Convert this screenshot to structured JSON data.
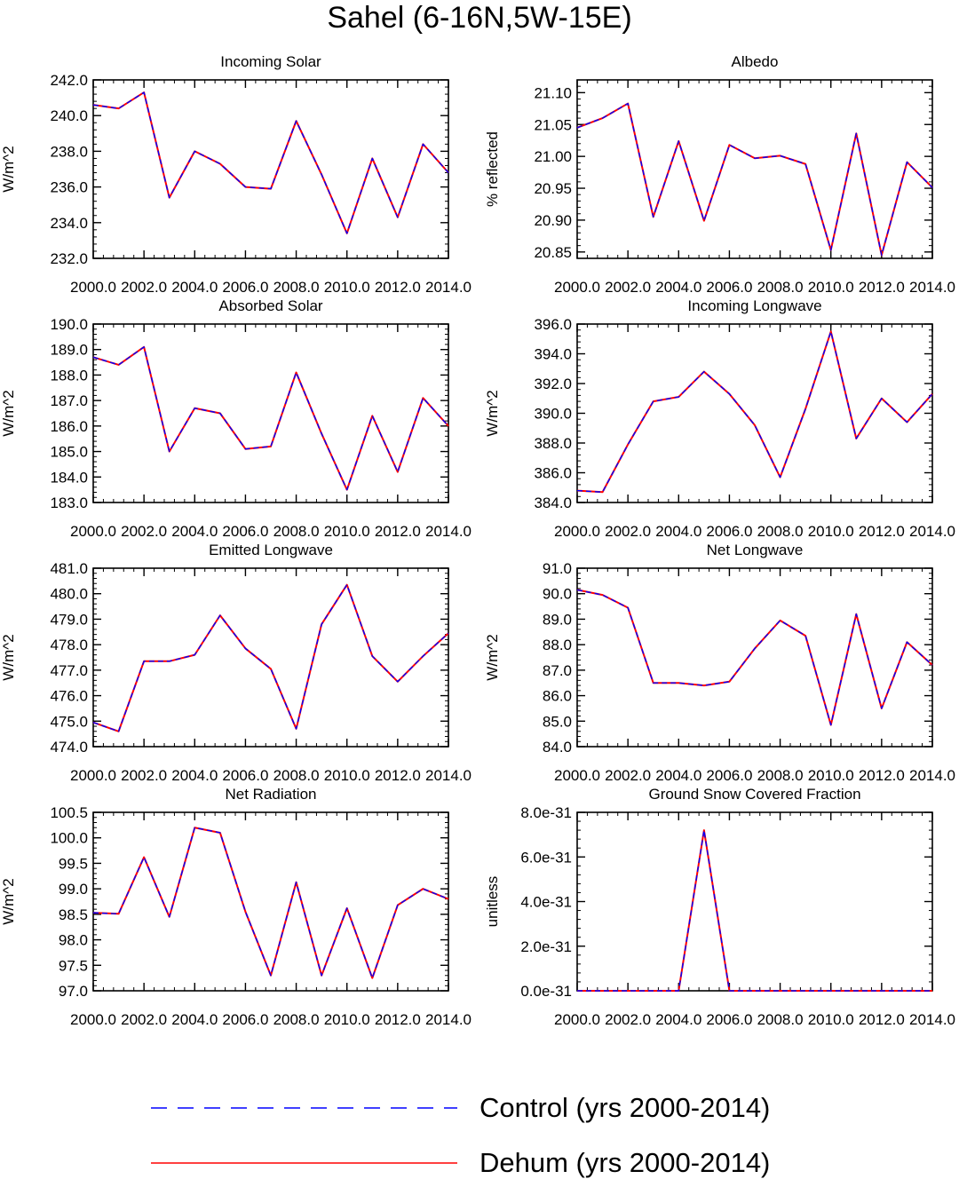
{
  "title": "Sahel (6-16N,5W-15E)",
  "colors": {
    "control": "#0000ff",
    "dehum": "#ff0000",
    "axis": "#000000"
  },
  "legend": [
    {
      "label": "Control (yrs 2000-2014)",
      "style": "dashed",
      "color": "#0000ff"
    },
    {
      "label": "Dehum (yrs 2000-2014)",
      "style": "solid",
      "color": "#ff0000"
    }
  ],
  "chart_data": [
    {
      "type": "line",
      "title": "Incoming Solar",
      "ylabel": "W/m^2",
      "xlim": [
        2000,
        2014
      ],
      "ylim": [
        232,
        242
      ],
      "yticks": [
        232,
        234,
        236,
        238,
        240,
        242
      ],
      "yticklabels": [
        "232.0",
        "234.0",
        "236.0",
        "238.0",
        "240.0",
        "242.0"
      ],
      "xticks": [
        2000,
        2002,
        2004,
        2006,
        2008,
        2010,
        2012,
        2014
      ],
      "xticklabels": [
        "2000.0",
        "2002.0",
        "2004.0",
        "2006.0",
        "2008.0",
        "2010.0",
        "2012.0",
        "2014.0"
      ],
      "x": [
        2000,
        2001,
        2002,
        2003,
        2004,
        2005,
        2006,
        2007,
        2008,
        2009,
        2010,
        2011,
        2012,
        2013,
        2014
      ],
      "series": [
        {
          "name": "Control (yrs 2000-2014)",
          "values": [
            240.6,
            240.4,
            241.3,
            235.4,
            238.0,
            237.3,
            236.0,
            235.9,
            239.7,
            236.7,
            233.4,
            237.6,
            234.3,
            238.4,
            236.8
          ]
        },
        {
          "name": "Dehum (yrs 2000-2014)",
          "values": [
            240.6,
            240.4,
            241.3,
            235.4,
            238.0,
            237.3,
            236.0,
            235.9,
            239.7,
            236.7,
            233.4,
            237.6,
            234.3,
            238.4,
            236.8
          ]
        }
      ]
    },
    {
      "type": "line",
      "title": "Albedo",
      "ylabel": "% reflected",
      "xlim": [
        2000,
        2014
      ],
      "ylim": [
        20.84,
        21.12
      ],
      "yticks": [
        20.85,
        20.9,
        20.95,
        21.0,
        21.05,
        21.1
      ],
      "yticklabels": [
        "20.85",
        "20.90",
        "20.95",
        "21.00",
        "21.05",
        "21.10"
      ],
      "xticks": [
        2000,
        2002,
        2004,
        2006,
        2008,
        2010,
        2012,
        2014
      ],
      "xticklabels": [
        "2000.0",
        "2002.0",
        "2004.0",
        "2006.0",
        "2008.0",
        "2010.0",
        "2012.0",
        "2014.0"
      ],
      "x": [
        2000,
        2001,
        2002,
        2003,
        2004,
        2005,
        2006,
        2007,
        2008,
        2009,
        2010,
        2011,
        2012,
        2013,
        2014
      ],
      "series": [
        {
          "name": "Control (yrs 2000-2014)",
          "values": [
            21.045,
            21.06,
            21.083,
            20.905,
            21.024,
            20.899,
            21.018,
            20.997,
            21.001,
            20.988,
            20.853,
            21.036,
            20.845,
            20.991,
            20.951
          ]
        },
        {
          "name": "Dehum (yrs 2000-2014)",
          "values": [
            21.045,
            21.06,
            21.083,
            20.905,
            21.024,
            20.899,
            21.018,
            20.997,
            21.001,
            20.988,
            20.853,
            21.036,
            20.845,
            20.991,
            20.951
          ]
        }
      ]
    },
    {
      "type": "line",
      "title": "Absorbed Solar",
      "ylabel": "W/m^2",
      "xlim": [
        2000,
        2014
      ],
      "ylim": [
        183,
        190
      ],
      "yticks": [
        183,
        184,
        185,
        186,
        187,
        188,
        189,
        190
      ],
      "yticklabels": [
        "183.0",
        "184.0",
        "185.0",
        "186.0",
        "187.0",
        "188.0",
        "189.0",
        "190.0"
      ],
      "xticks": [
        2000,
        2002,
        2004,
        2006,
        2008,
        2010,
        2012,
        2014
      ],
      "xticklabels": [
        "2000.0",
        "2002.0",
        "2004.0",
        "2006.0",
        "2008.0",
        "2010.0",
        "2012.0",
        "2014.0"
      ],
      "x": [
        2000,
        2001,
        2002,
        2003,
        2004,
        2005,
        2006,
        2007,
        2008,
        2009,
        2010,
        2011,
        2012,
        2013,
        2014
      ],
      "series": [
        {
          "name": "Control (yrs 2000-2014)",
          "values": [
            188.7,
            188.4,
            189.1,
            185.0,
            186.7,
            186.5,
            185.1,
            185.2,
            188.1,
            185.7,
            183.5,
            186.4,
            184.2,
            187.1,
            186.0
          ]
        },
        {
          "name": "Dehum (yrs 2000-2014)",
          "values": [
            188.7,
            188.4,
            189.1,
            185.0,
            186.7,
            186.5,
            185.1,
            185.2,
            188.1,
            185.7,
            183.5,
            186.4,
            184.2,
            187.1,
            186.0
          ]
        }
      ]
    },
    {
      "type": "line",
      "title": "Incoming Longwave",
      "ylabel": "W/m^2",
      "xlim": [
        2000,
        2014
      ],
      "ylim": [
        384,
        396
      ],
      "yticks": [
        384,
        386,
        388,
        390,
        392,
        394,
        396
      ],
      "yticklabels": [
        "384.0",
        "386.0",
        "388.0",
        "390.0",
        "392.0",
        "394.0",
        "396.0"
      ],
      "xticks": [
        2000,
        2002,
        2004,
        2006,
        2008,
        2010,
        2012,
        2014
      ],
      "xticklabels": [
        "2000.0",
        "2002.0",
        "2004.0",
        "2006.0",
        "2008.0",
        "2010.0",
        "2012.0",
        "2014.0"
      ],
      "x": [
        2000,
        2001,
        2002,
        2003,
        2004,
        2005,
        2006,
        2007,
        2008,
        2009,
        2010,
        2011,
        2012,
        2013,
        2014
      ],
      "series": [
        {
          "name": "Control (yrs 2000-2014)",
          "values": [
            384.8,
            384.7,
            387.9,
            390.8,
            391.1,
            392.8,
            391.3,
            389.2,
            385.7,
            390.3,
            395.5,
            388.3,
            391.0,
            389.4,
            391.3
          ]
        },
        {
          "name": "Dehum (yrs 2000-2014)",
          "values": [
            384.8,
            384.7,
            387.9,
            390.8,
            391.1,
            392.8,
            391.3,
            389.2,
            385.7,
            390.3,
            395.5,
            388.3,
            391.0,
            389.4,
            391.3
          ]
        }
      ]
    },
    {
      "type": "line",
      "title": "Emitted Longwave",
      "ylabel": "W/m^2",
      "xlim": [
        2000,
        2014
      ],
      "ylim": [
        474,
        481
      ],
      "yticks": [
        474,
        475,
        476,
        477,
        478,
        479,
        480,
        481
      ],
      "yticklabels": [
        "474.0",
        "475.0",
        "476.0",
        "477.0",
        "478.0",
        "479.0",
        "480.0",
        "481.0"
      ],
      "xticks": [
        2000,
        2002,
        2004,
        2006,
        2008,
        2010,
        2012,
        2014
      ],
      "xticklabels": [
        "2000.0",
        "2002.0",
        "2004.0",
        "2006.0",
        "2008.0",
        "2010.0",
        "2012.0",
        "2014.0"
      ],
      "x": [
        2000,
        2001,
        2002,
        2003,
        2004,
        2005,
        2006,
        2007,
        2008,
        2009,
        2010,
        2011,
        2012,
        2013,
        2014
      ],
      "series": [
        {
          "name": "Control (yrs 2000-2014)",
          "values": [
            474.95,
            474.6,
            477.35,
            477.35,
            477.6,
            479.15,
            477.85,
            477.05,
            474.7,
            478.8,
            480.35,
            477.55,
            476.55,
            477.55,
            478.45
          ]
        },
        {
          "name": "Dehum (yrs 2000-2014)",
          "values": [
            474.95,
            474.6,
            477.35,
            477.35,
            477.6,
            479.15,
            477.85,
            477.05,
            474.7,
            478.8,
            480.35,
            477.55,
            476.55,
            477.55,
            478.45
          ]
        }
      ]
    },
    {
      "type": "line",
      "title": "Net Longwave",
      "ylabel": "W/m^2",
      "xlim": [
        2000,
        2014
      ],
      "ylim": [
        84,
        91
      ],
      "yticks": [
        84,
        85,
        86,
        87,
        88,
        89,
        90,
        91
      ],
      "yticklabels": [
        "84.0",
        "85.0",
        "86.0",
        "87.0",
        "88.0",
        "89.0",
        "90.0",
        "91.0"
      ],
      "xticks": [
        2000,
        2002,
        2004,
        2006,
        2008,
        2010,
        2012,
        2014
      ],
      "xticklabels": [
        "2000.0",
        "2002.0",
        "2004.0",
        "2006.0",
        "2008.0",
        "2010.0",
        "2012.0",
        "2014.0"
      ],
      "x": [
        2000,
        2001,
        2002,
        2003,
        2004,
        2005,
        2006,
        2007,
        2008,
        2009,
        2010,
        2011,
        2012,
        2013,
        2014
      ],
      "series": [
        {
          "name": "Control (yrs 2000-2014)",
          "values": [
            90.15,
            89.95,
            89.45,
            86.5,
            86.5,
            86.4,
            86.55,
            87.85,
            88.95,
            88.35,
            84.85,
            89.2,
            85.5,
            88.1,
            87.2
          ]
        },
        {
          "name": "Dehum (yrs 2000-2014)",
          "values": [
            90.15,
            89.95,
            89.45,
            86.5,
            86.5,
            86.4,
            86.55,
            87.85,
            88.95,
            88.35,
            84.85,
            89.2,
            85.5,
            88.1,
            87.2
          ]
        }
      ]
    },
    {
      "type": "line",
      "title": "Net Radiation",
      "ylabel": "W/m^2",
      "xlim": [
        2000,
        2014
      ],
      "ylim": [
        97,
        100.5
      ],
      "yticks": [
        97,
        97.5,
        98,
        98.5,
        99,
        99.5,
        100,
        100.5
      ],
      "yticklabels": [
        "97.0",
        "97.5",
        "98.0",
        "98.5",
        "99.0",
        "99.5",
        "100.0",
        "100.5"
      ],
      "xticks": [
        2000,
        2002,
        2004,
        2006,
        2008,
        2010,
        2012,
        2014
      ],
      "xticklabels": [
        "2000.0",
        "2002.0",
        "2004.0",
        "2006.0",
        "2008.0",
        "2010.0",
        "2012.0",
        "2014.0"
      ],
      "x": [
        2000,
        2001,
        2002,
        2003,
        2004,
        2005,
        2006,
        2007,
        2008,
        2009,
        2010,
        2011,
        2012,
        2013,
        2014
      ],
      "series": [
        {
          "name": "Control (yrs 2000-2014)",
          "values": [
            98.53,
            98.51,
            99.62,
            98.45,
            100.2,
            100.1,
            98.55,
            97.3,
            99.13,
            97.3,
            98.62,
            97.25,
            98.68,
            99.0,
            98.8
          ]
        },
        {
          "name": "Dehum (yrs 2000-2014)",
          "values": [
            98.53,
            98.51,
            99.62,
            98.45,
            100.2,
            100.1,
            98.55,
            97.3,
            99.13,
            97.3,
            98.62,
            97.25,
            98.68,
            99.0,
            98.8
          ]
        }
      ]
    },
    {
      "type": "line",
      "title": "Ground Snow Covered Fraction",
      "ylabel": "unitless",
      "xlim": [
        2000,
        2014
      ],
      "ylim": [
        0,
        8e-31
      ],
      "yticks": [
        0,
        2e-31,
        4e-31,
        6e-31,
        8e-31
      ],
      "yticklabels": [
        "0.0e-31",
        "2.0e-31",
        "4.0e-31",
        "6.0e-31",
        "8.0e-31"
      ],
      "xticks": [
        2000,
        2002,
        2004,
        2006,
        2008,
        2010,
        2012,
        2014
      ],
      "xticklabels": [
        "2000.0",
        "2002.0",
        "2004.0",
        "2006.0",
        "2008.0",
        "2010.0",
        "2012.0",
        "2014.0"
      ],
      "x": [
        2000,
        2001,
        2002,
        2003,
        2004,
        2005,
        2006,
        2007,
        2008,
        2009,
        2010,
        2011,
        2012,
        2013,
        2014
      ],
      "series": [
        {
          "name": "Control (yrs 2000-2014)",
          "values": [
            0,
            0,
            0,
            0,
            0,
            7.2e-31,
            0,
            0,
            0,
            0,
            0,
            0,
            0,
            0,
            0
          ]
        },
        {
          "name": "Dehum (yrs 2000-2014)",
          "values": [
            0,
            0,
            0,
            0,
            0,
            7.2e-31,
            0,
            0,
            0,
            0,
            0,
            0,
            0,
            0,
            0
          ]
        }
      ]
    }
  ]
}
